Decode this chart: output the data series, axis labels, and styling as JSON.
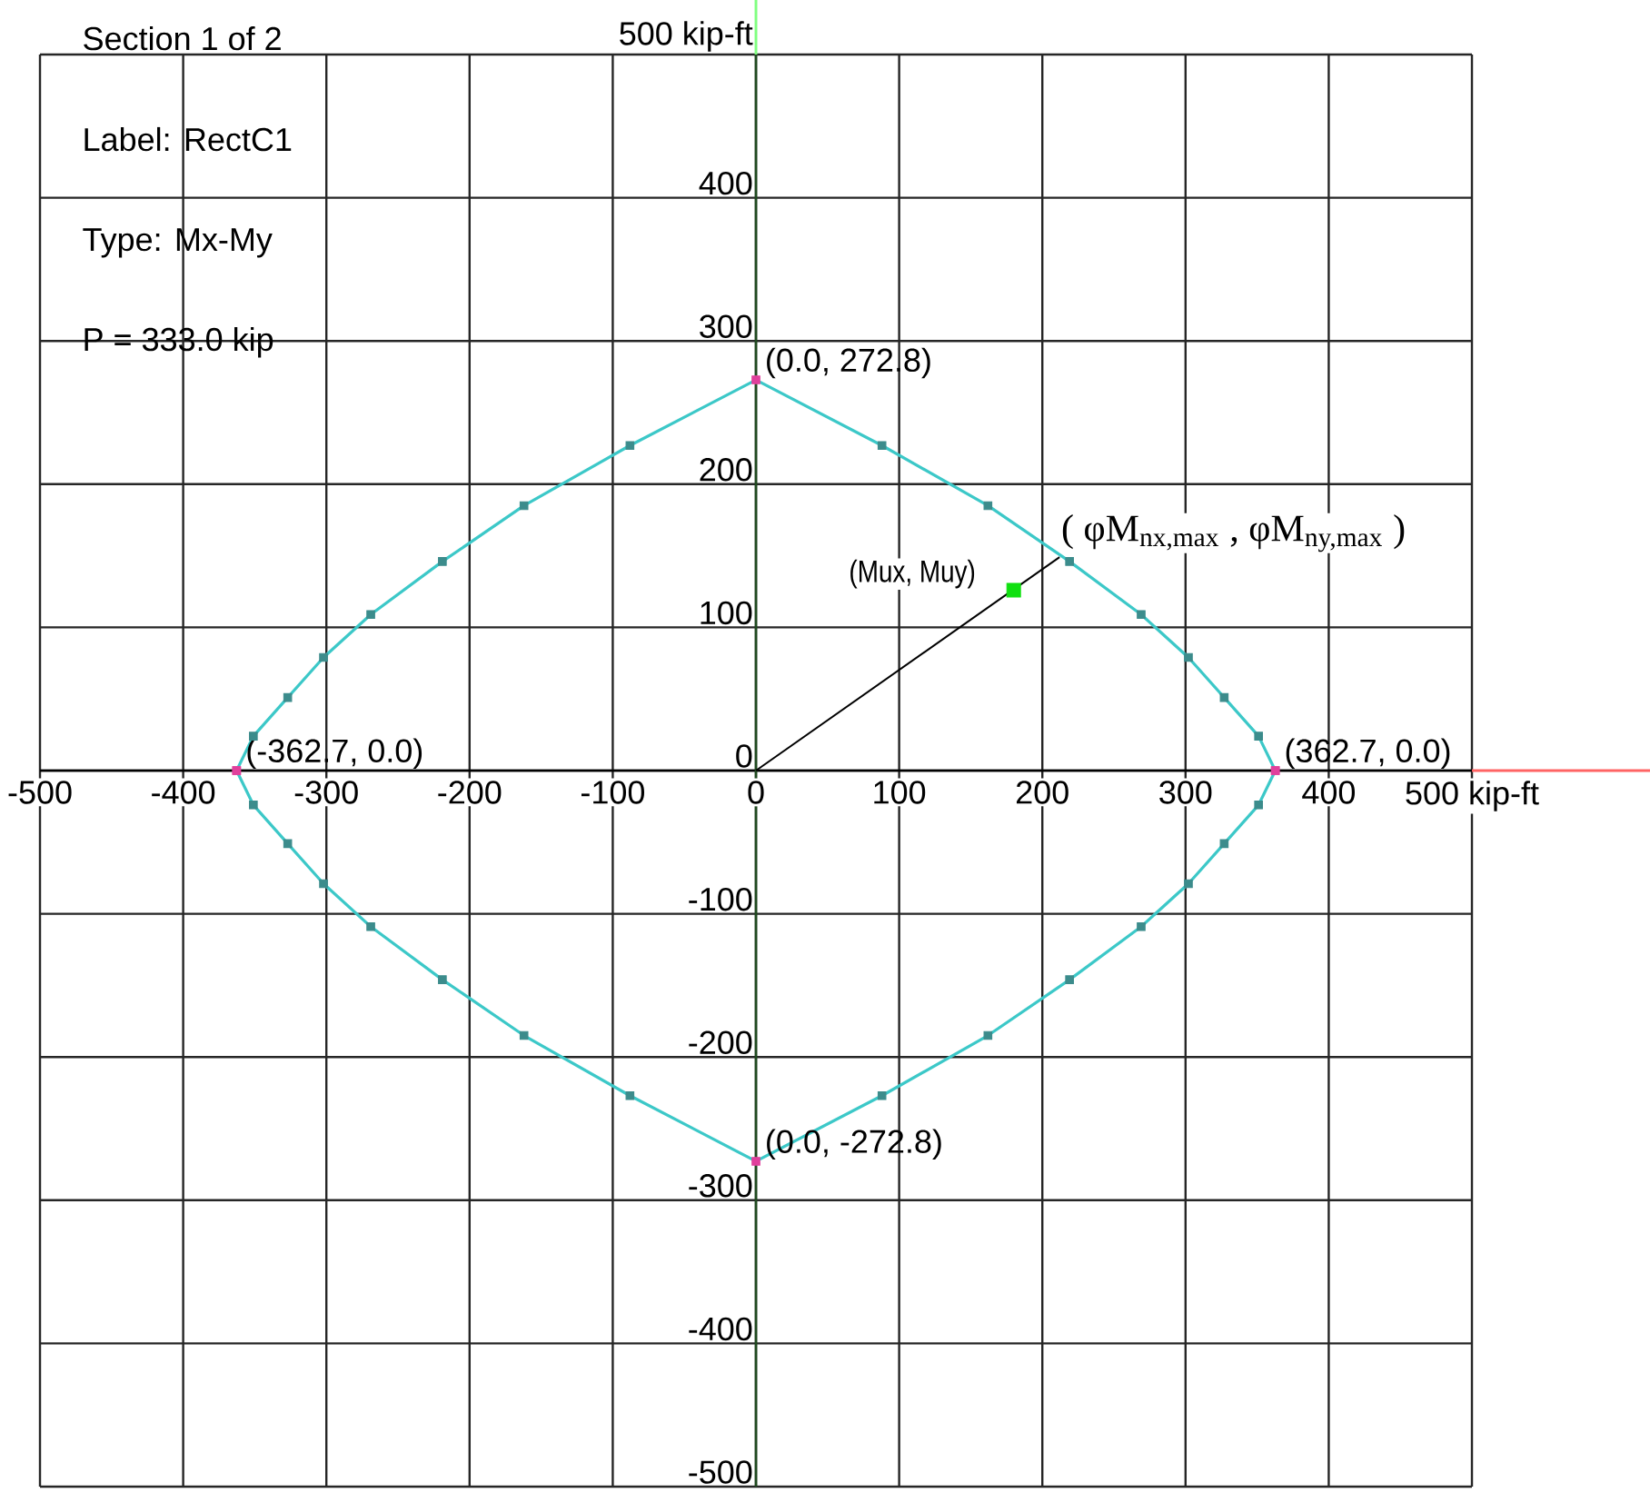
{
  "chart_data": {
    "type": "line",
    "annotations": [
      "Section 1 of 2",
      "Label: RectC1",
      "Type: Mx-My",
      "P = 333.0 kip",
      {
        "text": "(0.0, 272.8)",
        "x": 0,
        "y": 272.8
      },
      {
        "text": "(362.7, 0.0)",
        "x": 362.7,
        "y": 0
      },
      {
        "text": "(-362.7, 0.0)",
        "x": -362.7,
        "y": 0
      },
      {
        "text": "(0.0, -272.8)",
        "x": 0,
        "y": -272.8
      },
      {
        "text": "(Mux, Muy)",
        "x": 180,
        "y": 126
      },
      {
        "text": "( φM$_{nx,max}$ , φM$_{ny,max}$ )",
        "x": 212,
        "y": 149
      }
    ],
    "series": [
      {
        "marker": "square",
        "color": "#3cc8c8",
        "colors": [
          "#e0409c",
          "#3c8c8c",
          "#3c8c8c",
          "#3c8c8c",
          "#3c8c8c",
          "#3c8c8c",
          "#3c8c8c",
          "#3c8c8c",
          "#e0409c",
          "#3c8c8c",
          "#3c8c8c",
          "#3c8c8c",
          "#3c8c8c",
          "#3c8c8c",
          "#3c8c8c",
          "#3c8c8c",
          "#e0409c"
        ],
        "x": [
          -362.7,
          -351,
          -327,
          -302,
          -269,
          -219,
          -162,
          -88,
          0,
          88,
          162,
          219,
          269,
          302,
          327,
          351,
          362.7
        ],
        "values": [
          0,
          24,
          51,
          79,
          109,
          146,
          185,
          227,
          272.8,
          227,
          185,
          146,
          109,
          79,
          51,
          24,
          0
        ]
      },
      {
        "marker": "square",
        "color": "#3cc8c8",
        "colors": [
          "#e0409c",
          "#3c8c8c",
          "#3c8c8c",
          "#3c8c8c",
          "#3c8c8c",
          "#3c8c8c",
          "#3c8c8c",
          "#3c8c8c",
          "#e0409c",
          "#3c8c8c",
          "#3c8c8c",
          "#3c8c8c",
          "#3c8c8c",
          "#3c8c8c",
          "#3c8c8c",
          "#3c8c8c",
          "#e0409c"
        ],
        "x": [
          -362.7,
          -351,
          -327,
          -302,
          -269,
          -219,
          -162,
          -88,
          0,
          88,
          162,
          219,
          269,
          302,
          327,
          351,
          362.7
        ],
        "values": [
          0,
          -24,
          -51,
          -79,
          -109,
          -146,
          -185,
          -227,
          -272.8,
          -227,
          -185,
          -146,
          -109,
          -79,
          -51,
          -24,
          0
        ]
      },
      {
        "marker": "none",
        "color": "#000000",
        "x": [
          0,
          212
        ],
        "values": [
          0,
          149
        ]
      },
      {
        "type": "scatter",
        "marker": "square",
        "color": "#10e010",
        "x": [
          180
        ],
        "values": [
          126
        ]
      }
    ],
    "xlim": [
      -500,
      500
    ],
    "ylim": [
      -500,
      500
    ],
    "xticks": [
      -500,
      -400,
      -300,
      -200,
      -100,
      0,
      100,
      200,
      300,
      400,
      {
        "value": 500,
        "label": "500 kip-ft"
      }
    ],
    "yticks": [
      -500,
      -400,
      -300,
      -200,
      -100,
      0,
      100,
      200,
      300,
      400,
      {
        "value": 500,
        "label": "500 kip-ft"
      }
    ],
    "grid": true
  }
}
